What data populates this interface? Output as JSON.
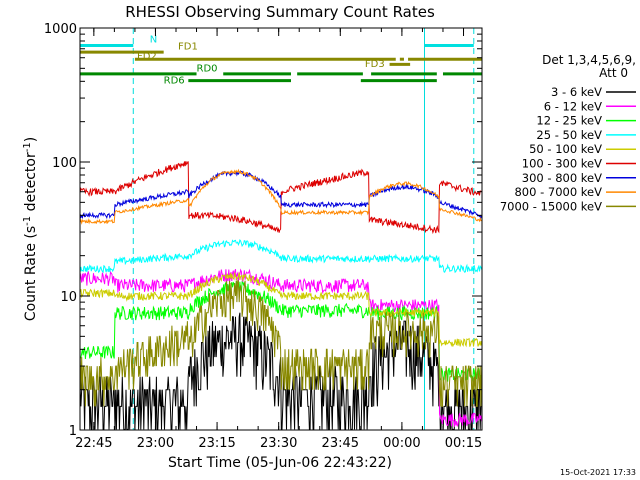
{
  "chart_data": {
    "type": "line",
    "title": "RHESSI Observing Summary Count Rates",
    "xlabel": "Start Time (05-Jun-06 22:43:22)",
    "ylabel_main": "Count Rate (s",
    "ylabel_sup": "-1",
    "ylabel_mid": " detector",
    "ylabel_sup2": "-1",
    "ylabel_end": ")",
    "x_start_min": -1.37,
    "x_end_min": 96.5,
    "yscale": "log",
    "ylim": [
      1,
      1000
    ],
    "x_ticks": [
      {
        "t": 2,
        "label": "22:45"
      },
      {
        "t": 17,
        "label": "23:00"
      },
      {
        "t": 32,
        "label": "23:15"
      },
      {
        "t": 47,
        "label": "23:30"
      },
      {
        "t": 62,
        "label": "23:45"
      },
      {
        "t": 77,
        "label": "00:00"
      },
      {
        "t": 92,
        "label": "00:15"
      }
    ],
    "y_ticks": [
      {
        "v": 1,
        "label": "1"
      },
      {
        "v": 10,
        "label": "10"
      },
      {
        "v": 100,
        "label": "100"
      },
      {
        "v": 1000,
        "label": "1000"
      }
    ],
    "legend_header": "Det 1,3,4,5,6,9,",
    "legend_header2": "Att 0",
    "series": [
      {
        "name": "3 - 6 keV",
        "color": "#000000"
      },
      {
        "name": "6 - 12 keV",
        "color": "#ff00ff"
      },
      {
        "name": "12 - 25 keV",
        "color": "#00ff00"
      },
      {
        "name": "25 - 50 keV",
        "color": "#00ffff"
      },
      {
        "name": "50 - 100 keV",
        "color": "#cccc00"
      },
      {
        "name": "100 - 300 keV",
        "color": "#dd0000"
      },
      {
        "name": "300 - 800 keV",
        "color": "#0000dd"
      },
      {
        "name": "800 - 7000 keV",
        "color": "#ff8800"
      },
      {
        "name": "7000 - 15000 keV",
        "color": "#888800"
      }
    ],
    "flags": [
      {
        "label": "N",
        "color": "#00e0e0",
        "segments": [
          [
            -1.4,
            11.6
          ],
          [
            82.5,
            94.5
          ]
        ],
        "y": 740
      },
      {
        "label": "FD1",
        "color": "#888800",
        "segments": [
          [
            -1.4,
            19
          ]
        ],
        "y": 660
      },
      {
        "label": "FD2",
        "color": "#888800",
        "segments": [
          [
            12,
            75.5
          ],
          [
            76.5,
            77.5
          ],
          [
            78.5,
            96.5
          ]
        ],
        "y": 585
      },
      {
        "label": "FD3",
        "color": "#888800",
        "segments": [
          [
            74,
            79
          ]
        ],
        "y": 535
      },
      {
        "label": "RD0",
        "color": "#008800",
        "segments": [
          [
            -1.4,
            27
          ],
          [
            33.5,
            50
          ],
          [
            51.5,
            67.5
          ],
          [
            69.5,
            85.5
          ],
          [
            87,
            96.5
          ]
        ],
        "y": 455
      },
      {
        "label": "RD6",
        "color": "#008800",
        "segments": [
          [
            25,
            50
          ],
          [
            67,
            85.5
          ]
        ],
        "y": 405
      }
    ],
    "flag_label_pos": {
      "N": [
        15.6,
        780
      ],
      "FD1": [
        22.5,
        690
      ],
      "FD2": [
        12.5,
        580
      ],
      "FD3": [
        68,
        510
      ],
      "RD0": [
        27,
        475
      ],
      "RD6": [
        19,
        385
      ]
    },
    "saa_lines_solid": [
      82.5
    ],
    "saa_lines_dashed": [
      11.6,
      94.5
    ],
    "segment_boundaries": [
      7,
      25,
      47.5,
      69,
      86
    ]
  },
  "footer": {
    "timestamp": "15-Oct-2021 17:33"
  }
}
